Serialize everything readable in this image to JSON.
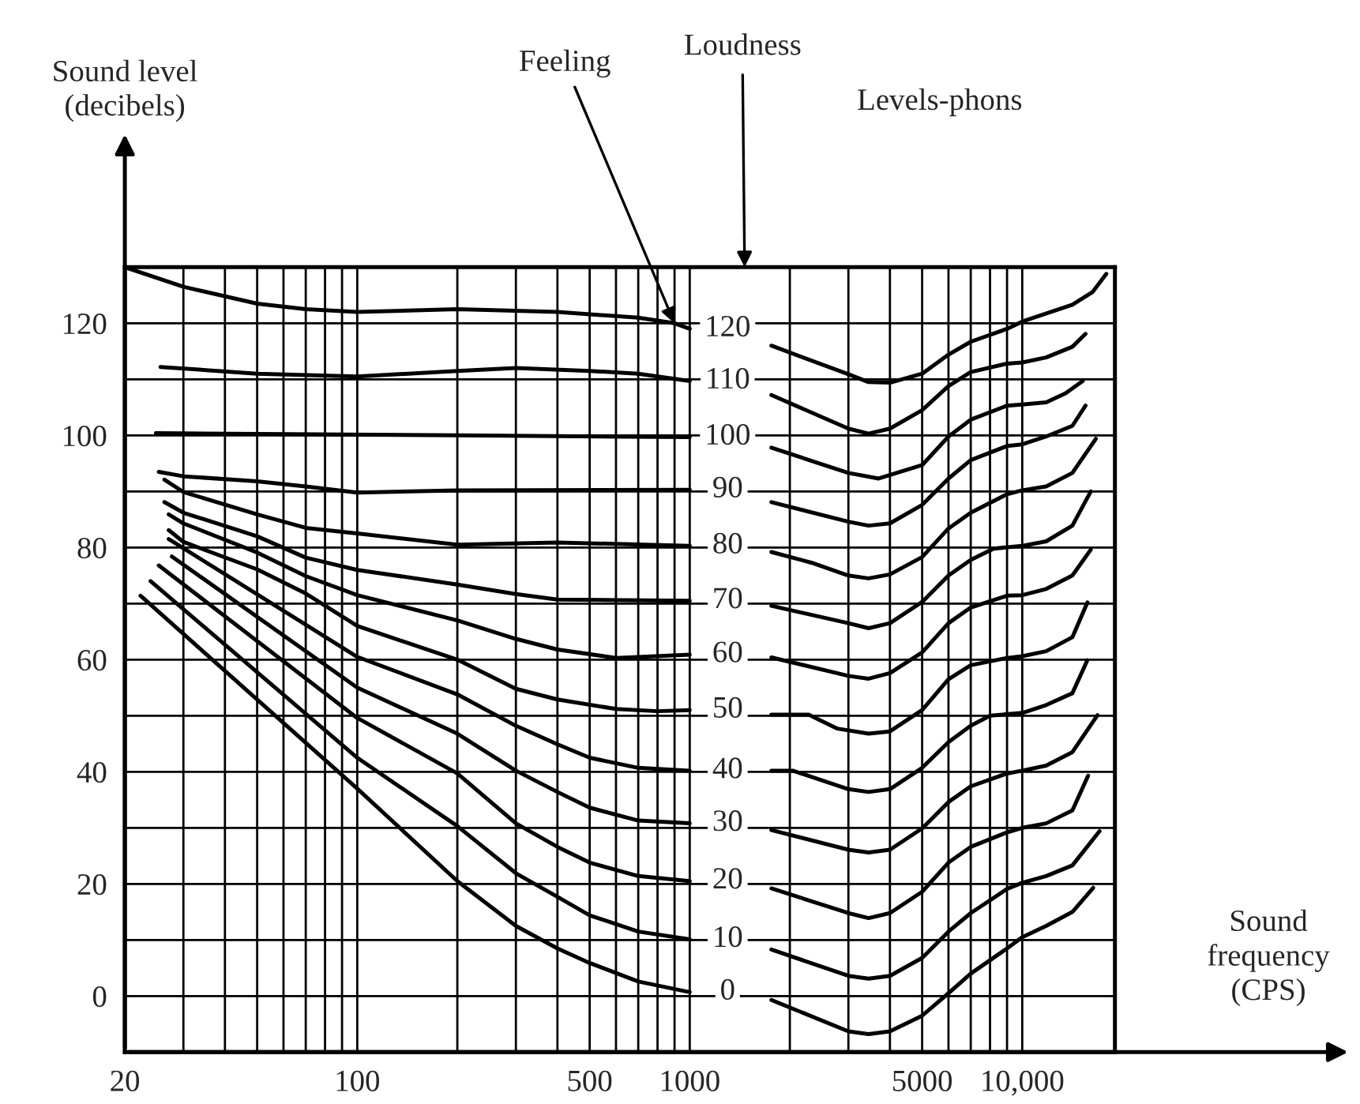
{
  "chart_data": {
    "type": "line",
    "xlabel": "Sound\nfrequency\n(CPS)",
    "ylabel": "Sound level\n(decibels)",
    "log": "x",
    "grid": true,
    "marker": "none",
    "line_style": "solid",
    "xlim": [
      20,
      19000
    ],
    "ylim": [
      -10,
      130
    ],
    "xticks": [
      20,
      {
        "value": 30,
        "label": null
      },
      {
        "value": 40,
        "label": null
      },
      {
        "value": 50,
        "label": null
      },
      {
        "value": 60,
        "label": null
      },
      {
        "value": 70,
        "label": null
      },
      {
        "value": 80,
        "label": null
      },
      {
        "value": 90,
        "label": null
      },
      100,
      {
        "value": 200,
        "label": null
      },
      {
        "value": 300,
        "label": null
      },
      {
        "value": 400,
        "label": null
      },
      500,
      {
        "value": 600,
        "label": null
      },
      {
        "value": 700,
        "label": null
      },
      {
        "value": 800,
        "label": null
      },
      {
        "value": 900,
        "label": null
      },
      1000,
      {
        "value": 2000,
        "label": null
      },
      {
        "value": 3000,
        "label": null
      },
      {
        "value": 4000,
        "label": null
      },
      5000,
      {
        "value": 6000,
        "label": null
      },
      {
        "value": 7000,
        "label": null
      },
      {
        "value": 8000,
        "label": null
      },
      {
        "value": 9000,
        "label": null
      },
      {
        "value": 10000,
        "label": "10,000"
      }
    ],
    "yticks": [
      0,
      {
        "value": 10,
        "label": null
      },
      20,
      {
        "value": 30,
        "label": null
      },
      40,
      {
        "value": 50,
        "label": null
      },
      60,
      {
        "value": 70,
        "label": null
      },
      80,
      {
        "value": 90,
        "label": null
      },
      100,
      {
        "value": 110,
        "label": null
      },
      120
    ],
    "annotations": [
      {
        "text": "Feeling",
        "x": 900,
        "y": 120
      },
      "Loudness",
      "Levels-phons"
    ],
    "series": [
      {
        "name": "120",
        "color": "#000000",
        "x": [
          20,
          30,
          50,
          70,
          100,
          200,
          400,
          700,
          900,
          1000,
          1300,
          1760,
          3000,
          3450,
          4000,
          5000,
          6000,
          7000,
          9000,
          10000,
          14150,
          16300,
          17900
        ],
        "values": [
          130,
          126.5,
          123.5,
          122.5,
          122,
          122.5,
          122,
          121,
          120,
          119,
          null,
          116,
          110.9,
          109.5,
          109.4,
          111,
          114.4,
          116.7,
          119,
          120.3,
          123.3,
          125.6,
          128.8
        ]
      },
      {
        "name": "110",
        "color": "#000000",
        "x": [
          25.6,
          50,
          100,
          200,
          300,
          500,
          700,
          1000,
          1300,
          1760,
          3000,
          3450,
          4000,
          5000,
          6000,
          7000,
          9000,
          10000,
          11800,
          14150,
          15500
        ],
        "values": [
          112.2,
          111,
          110.5,
          111.5,
          112,
          111.5,
          111,
          109.7,
          null,
          107.2,
          101.2,
          100.3,
          101.2,
          104.5,
          108.8,
          111.3,
          112.8,
          113,
          113.9,
          115.8,
          118.1
        ]
      },
      {
        "name": "100",
        "color": "#000000",
        "x": [
          24.8,
          200,
          1000,
          1300,
          1760,
          3000,
          3700,
          5000,
          6000,
          7000,
          9000,
          10000,
          11800,
          13500,
          15200
        ],
        "values": [
          100.4,
          100,
          99.7,
          null,
          97.8,
          93.3,
          92.3,
          94.7,
          99.8,
          102.8,
          105.3,
          105.5,
          105.9,
          107.5,
          109.7
        ]
      },
      {
        "name": "90",
        "color": "#000000",
        "x": [
          25.3,
          30,
          50,
          70,
          100,
          200,
          1000,
          1300,
          1760,
          3000,
          3450,
          4000,
          5000,
          6000,
          7000,
          9000,
          10000,
          11800,
          14150,
          15500
        ],
        "values": [
          93.5,
          92.7,
          91.8,
          90.9,
          89.8,
          90.2,
          90.3,
          null,
          88.1,
          84.6,
          83.9,
          84.3,
          87.6,
          92.3,
          95.6,
          98.1,
          98.4,
          99.8,
          101.7,
          105.3
        ]
      },
      {
        "name": "80",
        "color": "#000000",
        "x": [
          26.3,
          30,
          50,
          70,
          100,
          200,
          400,
          1000,
          1300,
          1760,
          2320,
          3000,
          3450,
          4000,
          5000,
          6000,
          7000,
          9000,
          10000,
          11800,
          14150,
          16650
        ],
        "values": [
          92.1,
          89.9,
          85.9,
          83.5,
          82.5,
          80.5,
          80.9,
          80.3,
          null,
          79.2,
          77.3,
          75,
          74.5,
          75.2,
          78.3,
          83.4,
          86.2,
          89.5,
          90.2,
          90.9,
          93.3,
          99.4
        ]
      },
      {
        "name": "70",
        "color": "#000000",
        "x": [
          26.3,
          30,
          50,
          70,
          100,
          200,
          300,
          400,
          1000,
          1300,
          1760,
          3000,
          3450,
          4000,
          5000,
          6000,
          7000,
          8200,
          10000,
          11800,
          14150,
          16070
        ],
        "values": [
          88.1,
          86.2,
          82,
          78.2,
          76,
          73.4,
          71.7,
          70.7,
          70.5,
          null,
          69.6,
          66.5,
          65.6,
          66.5,
          70.3,
          75,
          77.8,
          79.8,
          80.3,
          81.1,
          83.9,
          90
        ]
      },
      {
        "name": "60",
        "color": "#000000",
        "x": [
          27.1,
          30,
          50,
          70,
          100,
          200,
          300,
          400,
          600,
          1000,
          1300,
          1760,
          3000,
          3450,
          4000,
          5000,
          6000,
          7000,
          9000,
          10000,
          11800,
          14150,
          16070
        ],
        "values": [
          85.9,
          84.3,
          79.1,
          74.9,
          71.5,
          67,
          63.7,
          61.8,
          60.3,
          60.9,
          null,
          60.4,
          57.1,
          56.6,
          57.6,
          61.3,
          66.5,
          69.3,
          71.4,
          71.5,
          72.6,
          75,
          79.6
        ]
      },
      {
        "name": "50",
        "color": "#000000",
        "x": [
          27.1,
          30,
          50,
          70,
          100,
          200,
          300,
          400,
          600,
          800,
          1000,
          1300,
          1760,
          2280,
          2780,
          3450,
          4000,
          5000,
          6000,
          7000,
          9000,
          10000,
          11800,
          14150,
          15700
        ],
        "values": [
          83.1,
          81,
          76.1,
          71.8,
          66,
          60,
          54.8,
          52.9,
          51.2,
          50.8,
          51,
          null,
          50.2,
          50.2,
          47.7,
          46.8,
          47.2,
          51,
          56.5,
          59,
          60.3,
          60.6,
          61.5,
          64,
          70.2
        ]
      },
      {
        "name": "40",
        "color": "#000000",
        "x": [
          27.1,
          100,
          200,
          300,
          400,
          500,
          700,
          1000,
          1300,
          1760,
          2040,
          3000,
          3450,
          4000,
          5000,
          6000,
          7000,
          8000,
          10000,
          11800,
          14150,
          15700
        ],
        "values": [
          81.5,
          60.5,
          53.8,
          48.2,
          44.9,
          42.5,
          40.7,
          40.2,
          null,
          40.2,
          40.2,
          36.9,
          36.4,
          36.9,
          40.7,
          45.3,
          48.2,
          50,
          50.5,
          51.9,
          54,
          59.9
        ]
      },
      {
        "name": "30",
        "color": "#000000",
        "x": [
          27.7,
          100,
          200,
          300,
          400,
          500,
          700,
          1000,
          1300,
          1760,
          3000,
          3450,
          4000,
          5000,
          6000,
          7000,
          9000,
          10000,
          11800,
          14150,
          16840
        ],
        "values": [
          78.4,
          55,
          46.8,
          40.2,
          36.4,
          33.6,
          31.3,
          30.8,
          null,
          29.6,
          26.1,
          25.6,
          26.1,
          29.9,
          34.6,
          37.4,
          39.7,
          40.2,
          41.1,
          43.5,
          50.1
        ]
      },
      {
        "name": "20",
        "color": "#000000",
        "x": [
          25.3,
          100,
          200,
          300,
          400,
          500,
          700,
          1000,
          1300,
          1760,
          3000,
          3450,
          4000,
          5000,
          6000,
          7000,
          9000,
          10000,
          11800,
          14150,
          15780
        ],
        "values": [
          76.8,
          49.6,
          39.7,
          30.8,
          26.6,
          23.8,
          21.4,
          20.5,
          null,
          19.2,
          14.8,
          13.9,
          14.8,
          18.6,
          23.8,
          26.6,
          29.2,
          30,
          30.8,
          33.1,
          39.3
        ]
      },
      {
        "name": "10",
        "color": "#000000",
        "x": [
          23.9,
          100,
          200,
          300,
          400,
          500,
          700,
          1000,
          1300,
          1760,
          3000,
          3450,
          4000,
          5000,
          6000,
          7000,
          9000,
          10000,
          11800,
          14150,
          17080
        ],
        "values": [
          74,
          42.5,
          30.3,
          21.9,
          17.7,
          14.4,
          11.5,
          10.1,
          null,
          8.3,
          3.6,
          3.1,
          3.6,
          6.8,
          11.5,
          14.8,
          19.1,
          20.2,
          21.4,
          23.3,
          29.4
        ]
      },
      {
        "name": "0",
        "color": "#000000",
        "x": [
          22.3,
          100,
          200,
          300,
          400,
          500,
          700,
          1000,
          1300,
          1760,
          3000,
          3450,
          4000,
          5000,
          6000,
          7000,
          9000,
          10000,
          11800,
          14150,
          16340
        ],
        "values": [
          71.4,
          37,
          20.5,
          12.5,
          8.5,
          5.9,
          2.6,
          0.7,
          null,
          -0.7,
          -6.3,
          -6.8,
          -6.3,
          -3.5,
          0.5,
          4,
          8.5,
          10.5,
          12.5,
          15,
          19.3
        ]
      }
    ]
  }
}
